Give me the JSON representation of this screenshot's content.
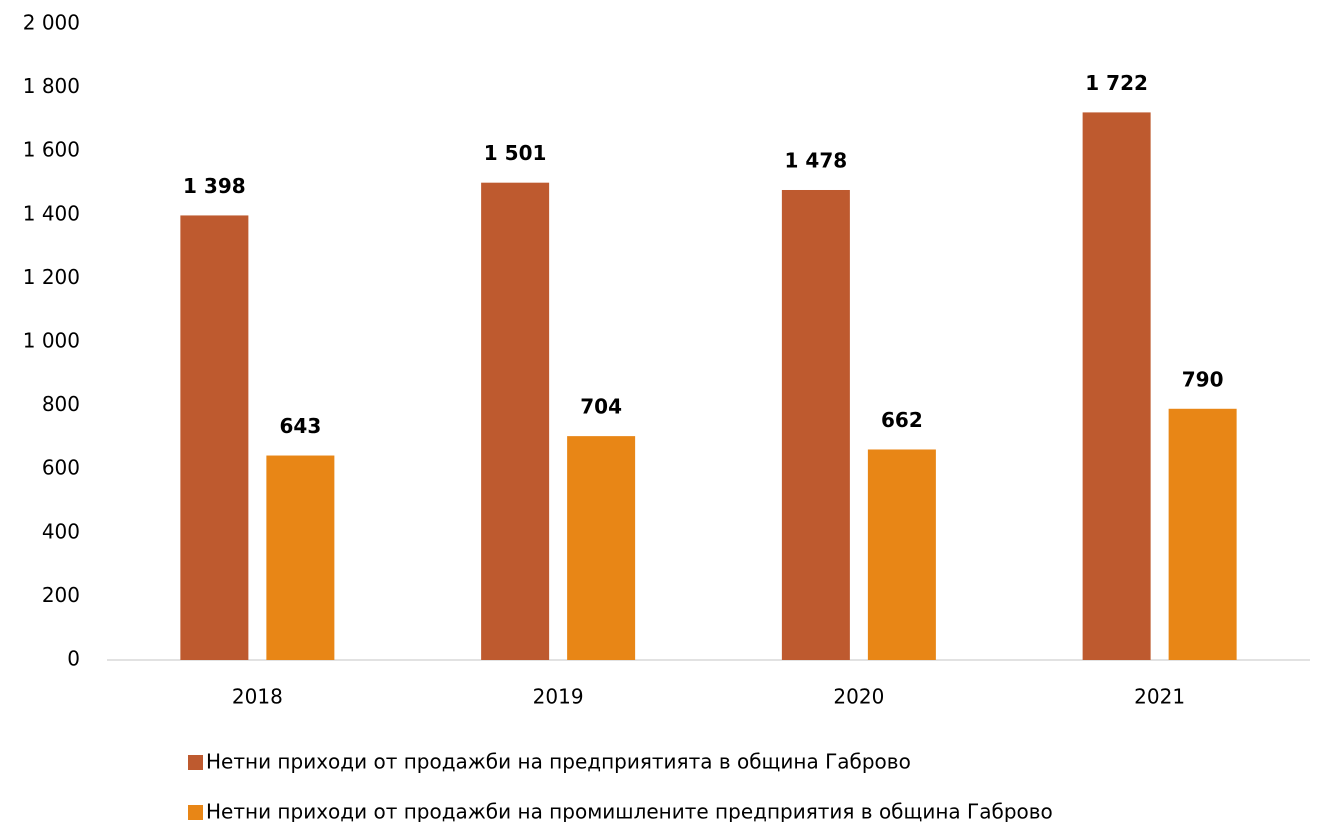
{
  "chart_data": {
    "type": "bar",
    "categories": [
      "2018",
      "2019",
      "2020",
      "2021"
    ],
    "series": [
      {
        "name": "Нетни приходи от продажби на предприятията в община Габрово",
        "color": "#be5a2f",
        "values": [
          1398,
          1501,
          1478,
          1722
        ],
        "value_labels": [
          "1 398",
          "1 501",
          "1 478",
          "1 722"
        ]
      },
      {
        "name": "Нетни приходи от продажби на промишлените предприятия в община Габрово",
        "color": "#e88616",
        "values": [
          643,
          704,
          662,
          790
        ]
      }
    ],
    "ylim": [
      0,
      2000
    ],
    "yticks": [
      0,
      200,
      400,
      600,
      800,
      {
        "value": 1000,
        "label": "1 000"
      },
      {
        "value": 1200,
        "label": "1 200"
      },
      {
        "value": 1400,
        "label": "1 400"
      },
      {
        "value": 1600,
        "label": "1 600"
      },
      {
        "value": 1800,
        "label": "1 800"
      },
      {
        "value": 2000,
        "label": "2 000"
      }
    ],
    "grid": false,
    "legend": "bottom"
  }
}
